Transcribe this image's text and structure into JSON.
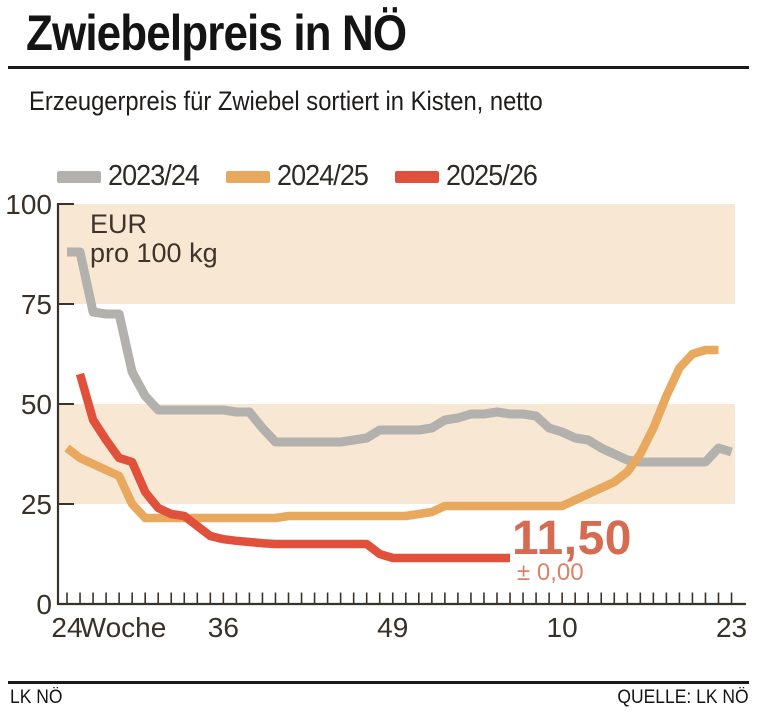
{
  "header": {
    "title": "Zwiebelpreis in NÖ",
    "subtitle": "Erzeugerpreis für Zwiebel sortiert in Kisten, netto"
  },
  "footer": {
    "left": "LK NÖ",
    "right": "QUELLE: LK NÖ"
  },
  "chart_data": {
    "type": "line",
    "title": "Zwiebelpreis in NÖ",
    "subtitle": "Erzeugerpreis für Zwiebel sortiert in Kisten, netto",
    "ylabel_lines": [
      "EUR",
      "pro 100 kg"
    ],
    "xlabel": "Woche",
    "ylim": [
      0,
      100
    ],
    "y_ticks": [
      100,
      75,
      50,
      25,
      0
    ],
    "weeks_start": 24,
    "weeks_total": 52,
    "x_labeled_weeks": [
      24,
      36,
      49,
      10,
      23
    ],
    "grid": false,
    "legend_position": "top",
    "highlight_bands": [
      {
        "from": 75,
        "to": 100
      },
      {
        "from": 25,
        "to": 50
      }
    ],
    "colors": {
      "band": "#f8e7d2",
      "axis": "#3a332c",
      "text": "#38302a"
    },
    "series": [
      {
        "name": "2023/24",
        "color": "#b3b1ae",
        "start_week": 24,
        "values": [
          88,
          88,
          73,
          72.5,
          72.5,
          58,
          52,
          48.5,
          48.5,
          48.5,
          48.5,
          48.5,
          48.5,
          48,
          48,
          44,
          40.5,
          40.5,
          40.5,
          40.5,
          40.5,
          40.5,
          41,
          41.5,
          43.5,
          43.5,
          43.5,
          43.5,
          44,
          46,
          46.5,
          47.5,
          47.5,
          48,
          47.5,
          47.5,
          47,
          44,
          43,
          41.5,
          41,
          39,
          37.5,
          36,
          35.5,
          35.5,
          35.5,
          35.5,
          35.5,
          35.5,
          39,
          38
        ]
      },
      {
        "name": "2024/25",
        "color": "#e8a95e",
        "start_week": 24,
        "values": [
          39,
          36.5,
          35,
          33.5,
          32,
          25,
          21.5,
          21.5,
          21.5,
          21.5,
          21.5,
          21.5,
          21.5,
          21.5,
          21.5,
          21.5,
          21.5,
          22,
          22,
          22,
          22,
          22,
          22,
          22,
          22,
          22,
          22,
          22.5,
          23,
          24.5,
          24.5,
          24.5,
          24.5,
          24.5,
          24.5,
          24.5,
          24.5,
          24.5,
          24.5,
          26,
          27.5,
          29,
          30.5,
          33,
          37.5,
          44,
          52,
          59,
          62.5,
          63.5,
          63.5
        ]
      },
      {
        "name": "2025/26",
        "color": "#e1503a",
        "start_week": 25,
        "values": [
          57.5,
          46,
          41,
          36.5,
          35.5,
          28,
          24,
          22.5,
          22,
          19.5,
          17,
          16.2,
          15.8,
          15.5,
          15.2,
          15,
          15,
          15,
          15,
          15,
          15,
          15,
          15,
          12.5,
          11.5,
          11.5,
          11.5,
          11.5,
          11.5,
          11.5,
          11.5,
          11.5,
          11.5,
          11.5
        ]
      }
    ],
    "current_price": {
      "value": "11,50",
      "change": "± 0,00",
      "series": "2025/26"
    }
  }
}
